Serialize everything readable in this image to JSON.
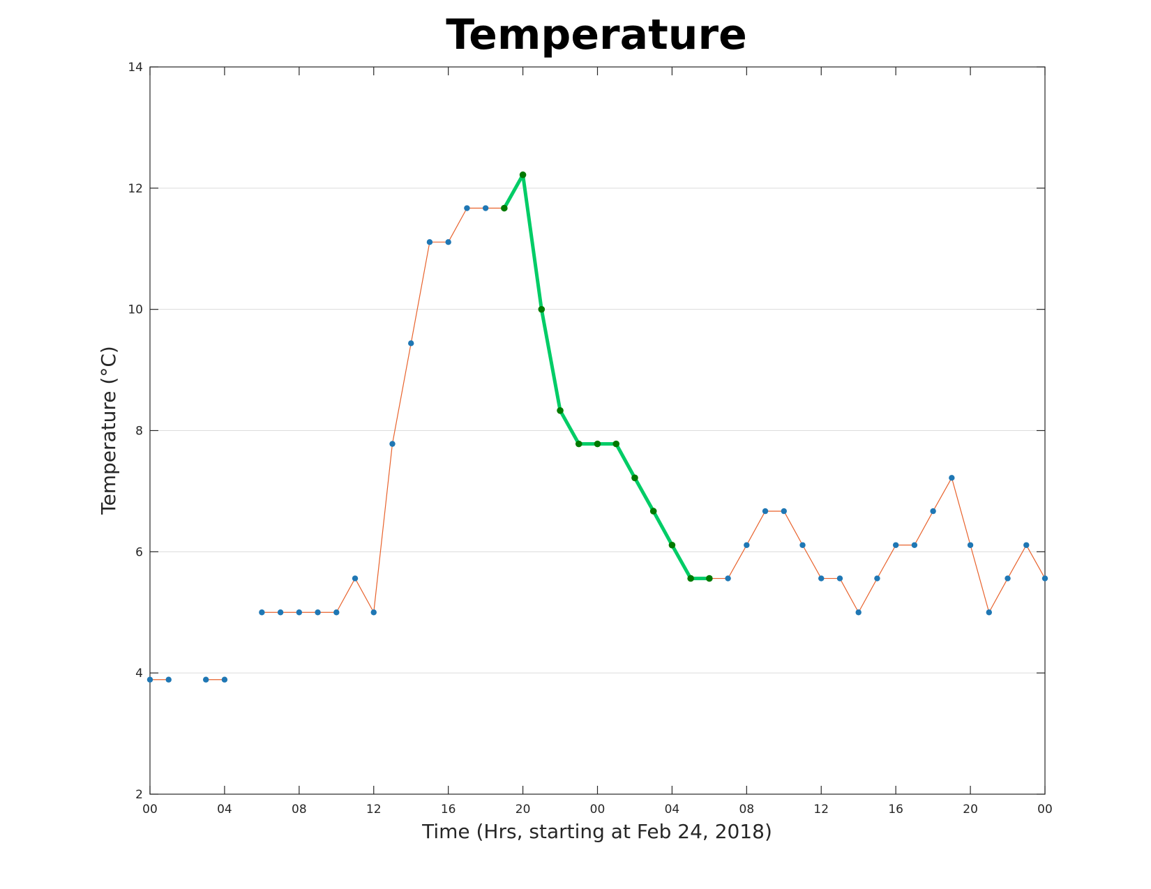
{
  "chart_data": {
    "type": "line",
    "title": "Temperature",
    "xlabel": "Time (Hrs, starting at Feb 24, 2018)",
    "ylabel": "Temperature (°C)",
    "xlim": [
      0,
      48
    ],
    "ylim": [
      2,
      14
    ],
    "x_ticks": [
      0,
      4,
      8,
      12,
      16,
      20,
      24,
      28,
      32,
      36,
      40,
      44,
      48
    ],
    "x_tick_labels": [
      "00",
      "04",
      "08",
      "12",
      "16",
      "20",
      "00",
      "04",
      "08",
      "12",
      "16",
      "20",
      "00"
    ],
    "y_ticks": [
      2,
      4,
      6,
      8,
      10,
      12,
      14
    ],
    "y_tick_labels": [
      "2",
      "4",
      "6",
      "8",
      "10",
      "12",
      "14"
    ],
    "grid": "y",
    "series": [
      {
        "color": "#e8622c",
        "marker_color": "#1f77b4",
        "x": [
          0,
          1,
          2,
          3,
          4,
          5,
          6,
          7,
          8,
          9,
          10,
          11,
          12,
          13,
          14,
          15,
          16,
          17,
          18,
          19,
          20,
          21,
          22,
          23,
          24,
          25,
          26,
          27,
          28,
          29,
          30,
          31,
          32,
          33,
          34,
          35,
          36,
          37,
          38,
          39,
          40,
          41,
          42,
          43,
          44,
          45,
          46,
          47,
          48
        ],
        "y": [
          3.89,
          3.89,
          null,
          3.89,
          3.89,
          null,
          5.0,
          5.0,
          5.0,
          5.0,
          5.0,
          5.56,
          5.0,
          7.78,
          9.44,
          11.11,
          11.11,
          11.67,
          11.67,
          11.67,
          12.22,
          10.0,
          8.33,
          7.78,
          7.78,
          7.78,
          7.22,
          6.67,
          6.11,
          5.56,
          5.56,
          5.56,
          6.11,
          6.67,
          6.67,
          6.11,
          5.56,
          5.56,
          5.0,
          5.56,
          6.11,
          6.11,
          6.67,
          7.22,
          6.11,
          5.0,
          5.56,
          6.11,
          5.56
        ]
      },
      {
        "color": "#00cc66",
        "marker_color": "#007a00",
        "x": [
          19,
          20,
          21,
          22,
          23,
          24,
          25,
          26,
          27,
          28,
          29,
          30
        ],
        "y": [
          11.67,
          12.22,
          10.0,
          8.33,
          7.78,
          7.78,
          7.78,
          7.22,
          6.67,
          6.11,
          5.56,
          5.56
        ]
      }
    ]
  }
}
